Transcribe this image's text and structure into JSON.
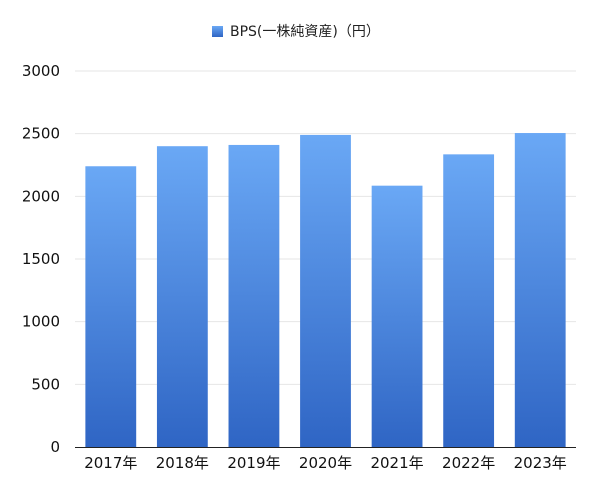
{
  "chart_data": {
    "type": "bar",
    "categories": [
      "2017年",
      "2018年",
      "2019年",
      "2020年",
      "2021年",
      "2022年",
      "2023年"
    ],
    "series": [
      {
        "name": "BPS(一株純資産)（円）",
        "values": [
          2240,
          2400,
          2410,
          2490,
          2085,
          2335,
          2505
        ]
      }
    ],
    "y_ticks": [
      "0",
      "500",
      "1000",
      "1500",
      "2000",
      "2500",
      "3000"
    ],
    "ylim": [
      0,
      3000
    ],
    "grid": true,
    "legend_position": "top-center",
    "colors": {
      "bar_top": "#6aa8f5",
      "bar_bottom": "#2f65c4",
      "grid": "#e6e6e6",
      "axis": "#222222"
    }
  }
}
